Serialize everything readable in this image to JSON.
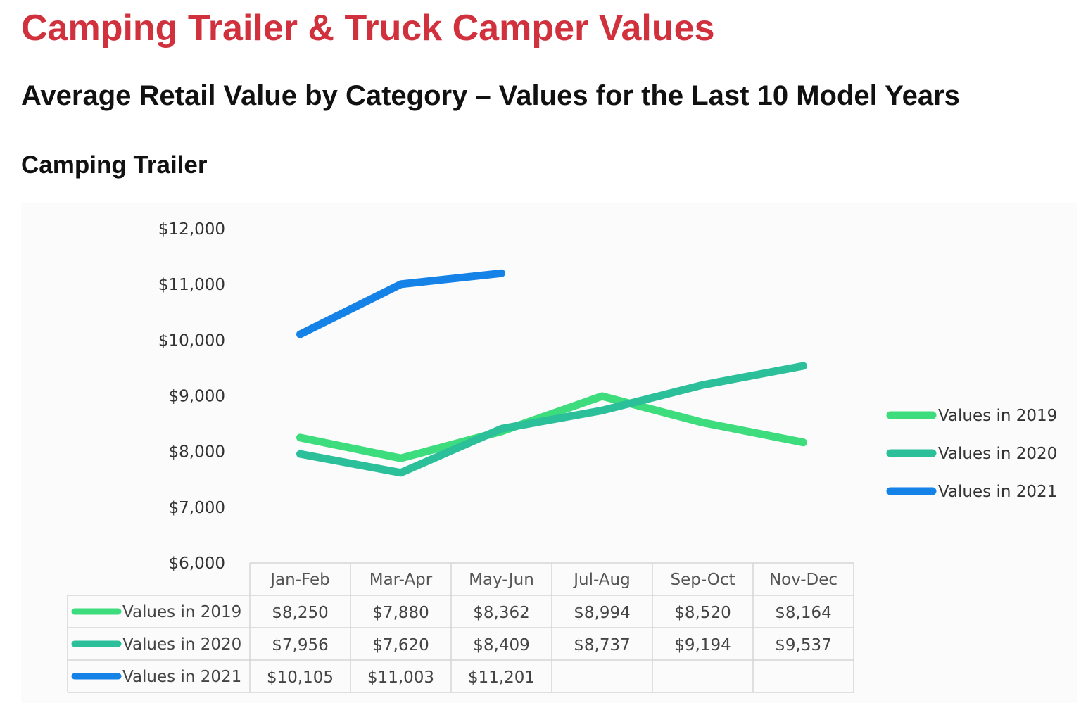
{
  "header": {
    "title": "Camping Trailer & Truck Camper Values",
    "subtitle": "Average Retail Value by Category – Values for the Last 10 Model Years",
    "section": "Camping Trailer"
  },
  "chart_data": {
    "type": "line",
    "title": "",
    "xlabel": "",
    "ylabel": "",
    "categories": [
      "Jan-Feb",
      "Mar-Apr",
      "May-Jun",
      "Jul-Aug",
      "Sep-Oct",
      "Nov-Dec"
    ],
    "ylim": [
      6000,
      12000
    ],
    "yticks": [
      "$6,000",
      "$7,000",
      "$8,000",
      "$9,000",
      "$10,000",
      "$11,000",
      "$12,000"
    ],
    "grid": false,
    "legend": "right",
    "data_table": true,
    "series": [
      {
        "name": "Values in 2019",
        "color": "#3ddc7c",
        "values": [
          8250,
          7880,
          8362,
          8994,
          8520,
          8164
        ],
        "labels": [
          "$8,250",
          "$7,880",
          "$8,362",
          "$8,994",
          "$8,520",
          "$8,164"
        ]
      },
      {
        "name": "Values in 2020",
        "color": "#2bbf9a",
        "values": [
          7956,
          7620,
          8409,
          8737,
          9194,
          9537
        ],
        "labels": [
          "$7,956",
          "$7,620",
          "$8,409",
          "$8,737",
          "$9,194",
          "$9,537"
        ]
      },
      {
        "name": "Values in 2021",
        "color": "#1582e8",
        "values": [
          10105,
          11003,
          11201,
          null,
          null,
          null
        ],
        "labels": [
          "$10,105",
          "$11,003",
          "$11,201",
          "",
          "",
          ""
        ]
      }
    ]
  }
}
